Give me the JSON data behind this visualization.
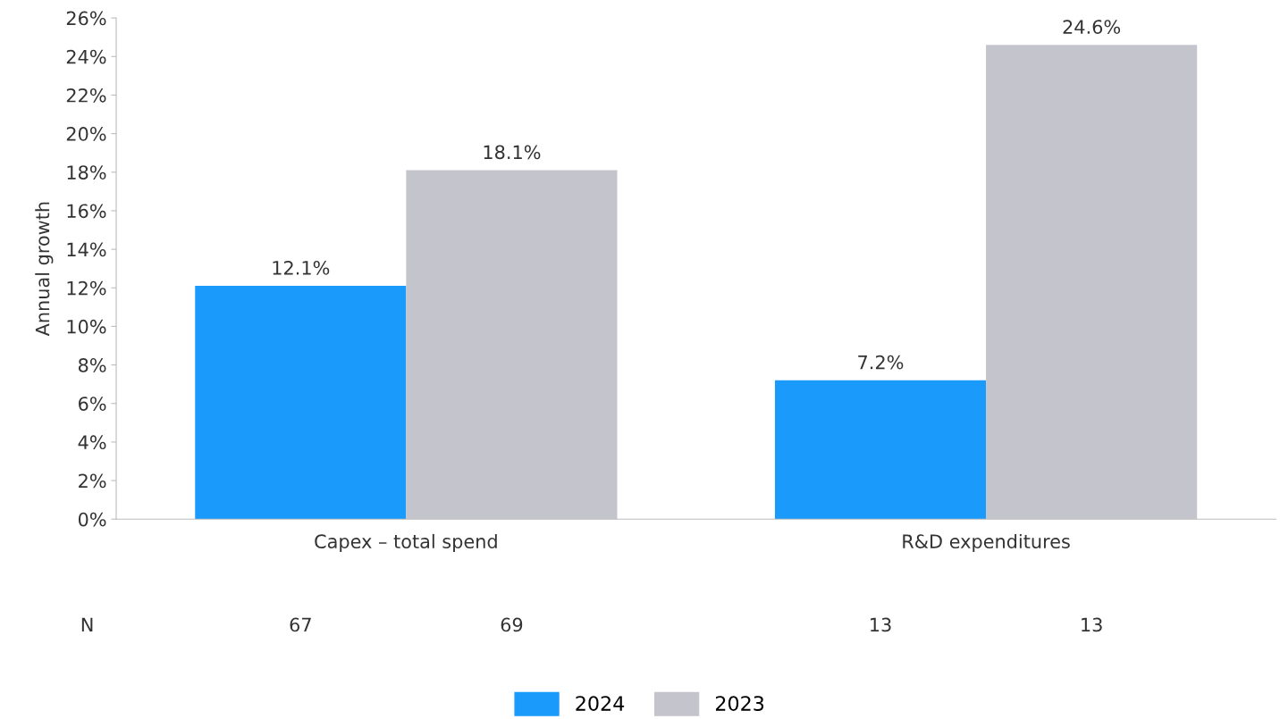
{
  "chart_data": {
    "type": "bar",
    "ylabel": "Annual growth",
    "categories": [
      "Capex – total spend",
      "R&D expenditures"
    ],
    "series": [
      {
        "name": "2024",
        "color": "#1a9bfc",
        "values": [
          12.1,
          7.2
        ],
        "value_labels": [
          "12.1%",
          "7.2%"
        ]
      },
      {
        "name": "2023",
        "color": "#c4c4cd",
        "values": [
          18.1,
          24.6
        ],
        "value_labels": [
          "18.1%",
          "24.6%"
        ]
      }
    ],
    "ylim": [
      0,
      26
    ],
    "yticks": [
      {
        "value": 0,
        "label": "0%"
      },
      {
        "value": 2,
        "label": "2%"
      },
      {
        "value": 4,
        "label": "4%"
      },
      {
        "value": 6,
        "label": "6%"
      },
      {
        "value": 8,
        "label": "8%"
      },
      {
        "value": 10,
        "label": "10%"
      },
      {
        "value": 12,
        "label": "12%"
      },
      {
        "value": 14,
        "label": "14%"
      },
      {
        "value": 16,
        "label": "16%"
      },
      {
        "value": 18,
        "label": "18%"
      },
      {
        "value": 20,
        "label": "20%"
      },
      {
        "value": 22,
        "label": "22%"
      },
      {
        "value": 24,
        "label": "24%"
      },
      {
        "value": 26,
        "label": "26%"
      }
    ],
    "annotations": [
      "N",
      "67",
      "69",
      "13",
      "13"
    ],
    "grid": false,
    "legend": "bottom"
  }
}
